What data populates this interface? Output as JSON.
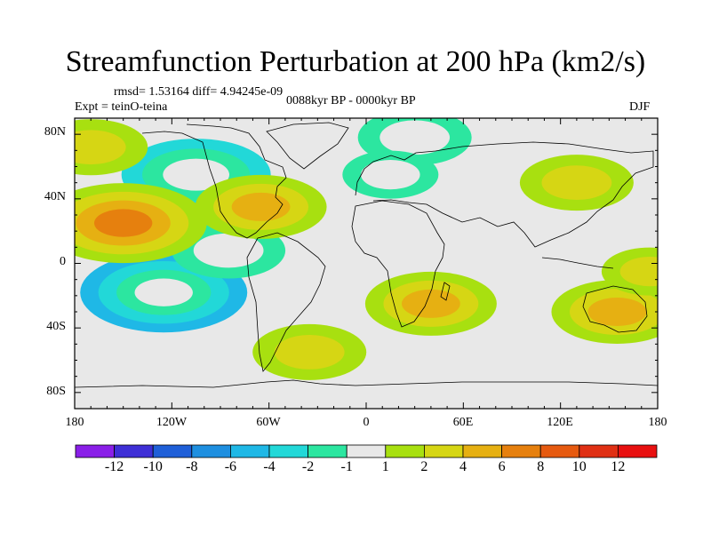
{
  "chart_data": {
    "type": "heatmap",
    "title": "Streamfunction Perturbation at 200 hPa (km2/s)",
    "stats_text": "rmsd= 1.53164 diff= 4.94245e-09",
    "experiment_text": "Expt = teinO-teina",
    "period_text": "0088kyr BP - 0000kyr BP",
    "season_text": "DJF",
    "x_ticks": [
      "180",
      "120W",
      "60W",
      "0",
      "60E",
      "120E",
      "180"
    ],
    "y_ticks": [
      "80N",
      "40N",
      "0",
      "40S",
      "80S"
    ],
    "x_range": [
      -180,
      180
    ],
    "y_range": [
      -90,
      90
    ],
    "colorbar": {
      "labels": [
        "-12",
        "-10",
        "-8",
        "-6",
        "-4",
        "-2",
        "-1",
        "1",
        "2",
        "4",
        "6",
        "8",
        "10",
        "12"
      ],
      "colors": [
        "#8a1fe8",
        "#3e2fd6",
        "#1f5fd8",
        "#1e8fe0",
        "#1fb8e6",
        "#22d8d8",
        "#2ce6a0",
        "#e8e8e8",
        "#a8e010",
        "#d6d614",
        "#e6b012",
        "#e6800e",
        "#e65a10",
        "#e03014",
        "#e81010"
      ]
    },
    "anomalies": [
      {
        "lon": -125,
        "lat": -18,
        "value": -6
      },
      {
        "lon": -105,
        "lat": 55,
        "value": -5
      },
      {
        "lon": -85,
        "lat": 8,
        "value": -3
      },
      {
        "lon": 30,
        "lat": 78,
        "value": -3
      },
      {
        "lon": 15,
        "lat": 55,
        "value": -2
      },
      {
        "lon": -150,
        "lat": 25,
        "value": 6
      },
      {
        "lon": -65,
        "lat": 35,
        "value": 4
      },
      {
        "lon": -35,
        "lat": -55,
        "value": 3
      },
      {
        "lon": 40,
        "lat": -25,
        "value": 4
      },
      {
        "lon": 155,
        "lat": -30,
        "value": 4
      },
      {
        "lon": 130,
        "lat": 50,
        "value": 3
      },
      {
        "lon": -170,
        "lat": 72,
        "value": 3
      },
      {
        "lon": 175,
        "lat": -5,
        "value": 2
      }
    ]
  }
}
